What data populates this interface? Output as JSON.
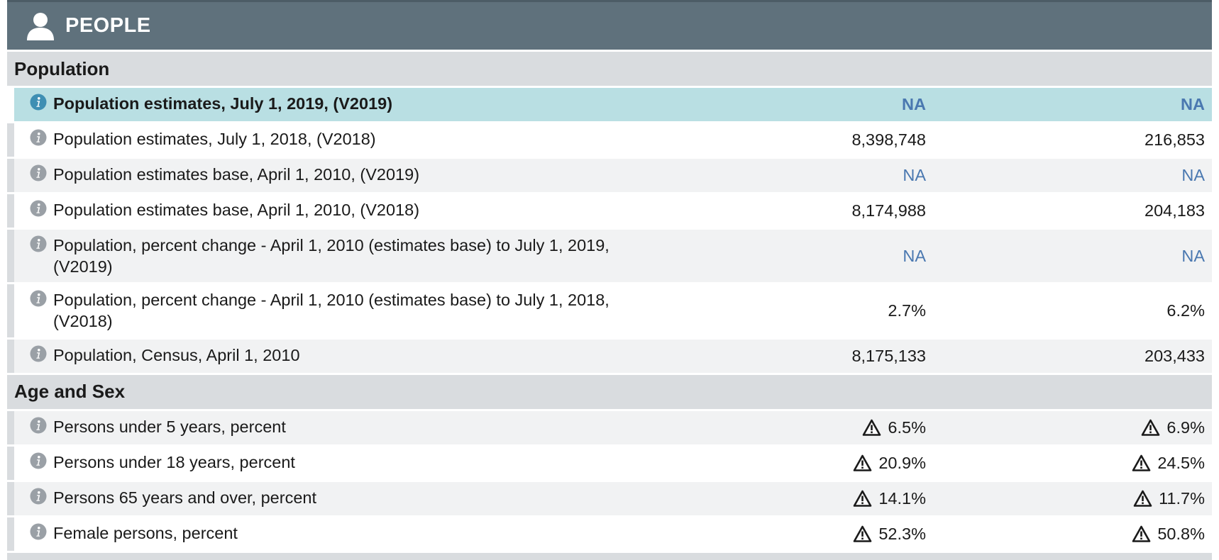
{
  "header": {
    "title": "PEOPLE",
    "icon": "person-icon"
  },
  "colors": {
    "header_bg": "#5f717c",
    "section_bg": "#d9dcdf",
    "highlight_bg": "#b9dfe3",
    "na_link": "#4a78b0"
  },
  "sections": [
    {
      "title": "Population",
      "rows": [
        {
          "label": "Population estimates, July 1, 2019, (V2019)",
          "col1": "NA",
          "col2": "NA",
          "na": true,
          "highlight": true
        },
        {
          "label": "Population estimates, July 1, 2018, (V2018)",
          "col1": "8,398,748",
          "col2": "216,853"
        },
        {
          "label": "Population estimates base, April 1, 2010, (V2019)",
          "col1": "NA",
          "col2": "NA",
          "na": true
        },
        {
          "label": "Population estimates base, April 1, 2010, (V2018)",
          "col1": "8,174,988",
          "col2": "204,183"
        },
        {
          "label": "Population, percent change - April 1, 2010 (estimates base) to July 1, 2019, (V2019)",
          "col1": "NA",
          "col2": "NA",
          "na": true,
          "tall": true
        },
        {
          "label": "Population, percent change - April 1, 2010 (estimates base) to July 1, 2018, (V2018)",
          "col1": "2.7%",
          "col2": "6.2%",
          "tall": true
        },
        {
          "label": "Population, Census, April 1, 2010",
          "col1": "8,175,133",
          "col2": "203,433"
        }
      ]
    },
    {
      "title": "Age and Sex",
      "rows": [
        {
          "label": "Persons under 5 years, percent",
          "col1": "6.5%",
          "col2": "6.9%",
          "warn": true
        },
        {
          "label": "Persons under 18 years, percent",
          "col1": "20.9%",
          "col2": "24.5%",
          "warn": true
        },
        {
          "label": "Persons 65 years and over, percent",
          "col1": "14.1%",
          "col2": "11.7%",
          "warn": true
        },
        {
          "label": "Female persons, percent",
          "col1": "52.3%",
          "col2": "50.8%",
          "warn": true
        }
      ]
    }
  ]
}
